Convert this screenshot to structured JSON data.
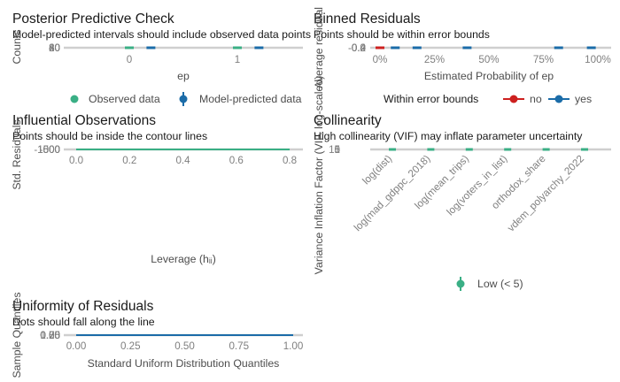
{
  "chart_data": [
    {
      "type": "scatter",
      "title": "Posterior Predictive Check",
      "subtitle": "Model-predicted intervals should include observed data points",
      "xlabel": "ep",
      "ylabel": "Counts",
      "x_ticks": [
        "0",
        "1"
      ],
      "y_ticks": [
        "0",
        "20",
        "40",
        "60",
        "80"
      ],
      "series": [
        {
          "name": "Observed data",
          "color": "#3aaf85",
          "points": [
            {
              "x": 0,
              "y": 0
            },
            {
              "x": 1,
              "y": 0
            }
          ]
        },
        {
          "name": "Model-predicted data",
          "color": "#1b6ca8",
          "points": [
            {
              "x": 0.2,
              "y": 0
            },
            {
              "x": 1.2,
              "y": 0
            }
          ]
        }
      ],
      "legend": "bottom"
    },
    {
      "type": "scatter",
      "title": "Binned Residuals",
      "subtitle": "Points should be within error bounds",
      "xlabel": "Estimated Probability of ep",
      "ylabel": "Average residual",
      "x_ticks": [
        "0%",
        "25%",
        "50%",
        "75%",
        "100%"
      ],
      "y_ticks": [
        "-0.4",
        "-0.2",
        "0.0",
        "0.2",
        "0.4"
      ],
      "legend_title": "Within error bounds",
      "series": [
        {
          "name": "no",
          "color": "#cd201f",
          "points": [
            {
              "x": 0.0,
              "y": 0
            }
          ]
        },
        {
          "name": "yes",
          "color": "#1b6ca8",
          "points": [
            {
              "x": 0.07,
              "y": 0
            },
            {
              "x": 0.17,
              "y": 0
            },
            {
              "x": 0.4,
              "y": 0
            },
            {
              "x": 0.82,
              "y": 0
            },
            {
              "x": 0.97,
              "y": 0
            }
          ]
        }
      ],
      "legend": "bottom"
    },
    {
      "type": "line",
      "title": "Influential Observations",
      "subtitle": "Points should be inside the contour lines",
      "xlabel": "Leverage (hᵢᵢ)",
      "ylabel": "Std. Residuals",
      "x_ticks": [
        "0.0",
        "0.2",
        "0.4",
        "0.6",
        "0.8"
      ],
      "y_ticks": [
        "-1000",
        "-500",
        "0",
        "500",
        "1000"
      ],
      "series": [
        {
          "name": "",
          "color": "#3aaf85",
          "x": [
            0,
            0.8
          ],
          "y": [
            0,
            0
          ]
        }
      ]
    },
    {
      "type": "scatter",
      "title": "Collinearity",
      "subtitle": "High collinearity (VIF) may inflate parameter uncertainty",
      "xlabel": "",
      "ylabel": "Variance Inflation Factor (VIF, log-scaled)",
      "categories": [
        "log(dist)",
        "log(mad_gdppc_2018)",
        "log(mean_trips)",
        "log(voters_in_list)",
        "orthodox_share",
        "vdem_polyarchy_2022"
      ],
      "y_ticks": [
        "1",
        "5",
        "10"
      ],
      "y_scale": "log",
      "series": [
        {
          "name": "Low (< 5)",
          "color": "#3aaf85",
          "values": [
            1,
            1,
            1,
            1,
            1,
            1
          ]
        }
      ],
      "legend": "bottom"
    },
    {
      "type": "line",
      "title": "Uniformity of Residuals",
      "subtitle": "Dots should fall along the line",
      "xlabel": "Standard Uniform Distribution Quantiles",
      "ylabel": "Sample Quantiles",
      "x_ticks": [
        "0.00",
        "0.25",
        "0.50",
        "0.75",
        "1.00"
      ],
      "y_ticks": [
        "0.00",
        "0.25",
        "0.50",
        "0.75",
        "1.00"
      ],
      "series": [
        {
          "name": "",
          "color": "#1b6ca8",
          "x": [
            0,
            1
          ],
          "y": [
            0,
            0
          ]
        }
      ]
    }
  ]
}
